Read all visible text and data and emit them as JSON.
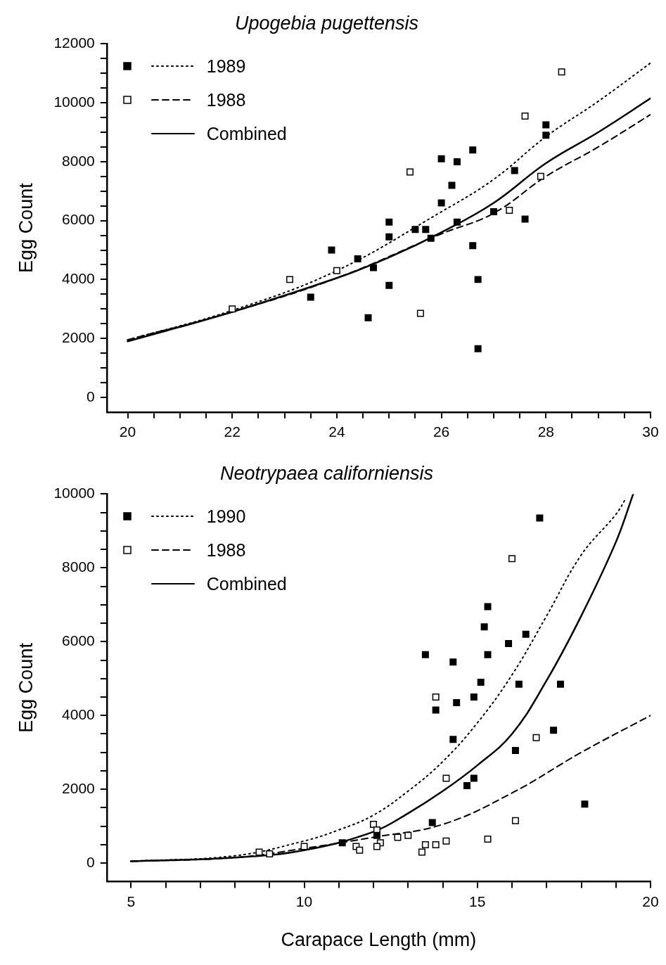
{
  "chart_data": [
    {
      "type": "scatter",
      "title": "Upogebia pugettensis",
      "ylabel": "Egg Count",
      "legend": "top left",
      "grid": false,
      "xlim": [
        19.6,
        30
      ],
      "ylim": [
        -500,
        12000
      ],
      "xticks": [
        20,
        {
          "value": 20.5,
          "label": null
        },
        {
          "value": 21,
          "label": null
        },
        {
          "value": 21.5,
          "label": null
        },
        22,
        {
          "value": 22.5,
          "label": null
        },
        {
          "value": 23,
          "label": null
        },
        {
          "value": 23.5,
          "label": null
        },
        24,
        {
          "value": 24.5,
          "label": null
        },
        {
          "value": 25,
          "label": null
        },
        {
          "value": 25.5,
          "label": null
        },
        26,
        {
          "value": 26.5,
          "label": null
        },
        {
          "value": 27,
          "label": null
        },
        {
          "value": 27.5,
          "label": null
        },
        28,
        {
          "value": 28.5,
          "label": null
        },
        {
          "value": 29,
          "label": null
        },
        {
          "value": 29.5,
          "label": null
        },
        30
      ],
      "yticks": [
        0,
        {
          "value": 500,
          "label": null
        },
        {
          "value": 1000,
          "label": null
        },
        {
          "value": 1500,
          "label": null
        },
        2000,
        {
          "value": 2500,
          "label": null
        },
        {
          "value": 3000,
          "label": null
        },
        {
          "value": 3500,
          "label": null
        },
        4000,
        {
          "value": 4500,
          "label": null
        },
        {
          "value": 5000,
          "label": null
        },
        {
          "value": 5500,
          "label": null
        },
        6000,
        {
          "value": 6500,
          "label": null
        },
        {
          "value": 7000,
          "label": null
        },
        {
          "value": 7500,
          "label": null
        },
        8000,
        {
          "value": 8500,
          "label": null
        },
        {
          "value": 9000,
          "label": null
        },
        {
          "value": 9500,
          "label": null
        },
        10000,
        {
          "value": 10500,
          "label": null
        },
        {
          "value": 11000,
          "label": null
        },
        {
          "value": 11500,
          "label": null
        },
        12000
      ],
      "series": [
        {
          "name": "1989",
          "type": "scatter",
          "marker": "square",
          "color": "#000000",
          "x": [
            23.5,
            23.9,
            24.4,
            24.7,
            24.6,
            25.0,
            25.0,
            25.0,
            25.5,
            25.7,
            25.8,
            26.0,
            26.0,
            26.2,
            26.3,
            26.3,
            26.6,
            26.6,
            26.7,
            26.7,
            27.0,
            27.4,
            27.6,
            28.0,
            28.0
          ],
          "values": [
            3400,
            5000,
            4700,
            4400,
            2700,
            5950,
            5450,
            3800,
            5700,
            5700,
            5400,
            8100,
            6600,
            7200,
            8000,
            5950,
            8400,
            5150,
            4000,
            1650,
            6300,
            7700,
            6050,
            9250,
            8900
          ]
        },
        {
          "name": "1988",
          "type": "scatter",
          "marker": "square",
          "color": "#ffffff",
          "x": [
            22.0,
            23.1,
            24.0,
            25.4,
            25.6,
            27.6,
            27.3,
            27.9,
            28.3
          ],
          "values": [
            3000,
            4000,
            4300,
            7650,
            2850,
            9550,
            6350,
            7500,
            11050
          ]
        },
        {
          "type": "line",
          "line_style": "dotted",
          "color": "#000000",
          "x": [
            20,
            22,
            24,
            26,
            27,
            28,
            29,
            30
          ],
          "values": [
            1950,
            2950,
            4300,
            6300,
            7400,
            8850,
            10050,
            11350
          ]
        },
        {
          "type": "line",
          "line_style": "dashed",
          "color": "#000000",
          "x": [
            20,
            22,
            24,
            26,
            27,
            28,
            29,
            30
          ],
          "values": [
            1950,
            2900,
            4050,
            5550,
            6250,
            7500,
            8500,
            9600
          ]
        },
        {
          "name": "Combined",
          "type": "line",
          "line_style": "solid",
          "color": "#000000",
          "x": [
            20,
            22,
            24,
            25,
            26,
            27,
            28,
            29,
            30
          ],
          "values": [
            1900,
            2900,
            4050,
            4750,
            5600,
            6600,
            7950,
            9000,
            10150
          ]
        }
      ]
    },
    {
      "type": "scatter",
      "title": "Neotrypaea californiensis",
      "xlabel": "Carapace Length (mm)",
      "ylabel": "Egg Count",
      "legend": "top left",
      "grid": false,
      "xlim": [
        4.3,
        20
      ],
      "ylim": [
        -500,
        10000
      ],
      "xticks": [
        5,
        {
          "value": 6,
          "label": null
        },
        {
          "value": 7,
          "label": null
        },
        {
          "value": 8,
          "label": null
        },
        {
          "value": 9,
          "label": null
        },
        10,
        {
          "value": 11,
          "label": null
        },
        {
          "value": 12,
          "label": null
        },
        {
          "value": 13,
          "label": null
        },
        {
          "value": 14,
          "label": null
        },
        15,
        {
          "value": 16,
          "label": null
        },
        {
          "value": 17,
          "label": null
        },
        {
          "value": 18,
          "label": null
        },
        {
          "value": 19,
          "label": null
        },
        20
      ],
      "yticks": [
        0,
        {
          "value": 500,
          "label": null
        },
        {
          "value": 1000,
          "label": null
        },
        {
          "value": 1500,
          "label": null
        },
        2000,
        {
          "value": 2500,
          "label": null
        },
        {
          "value": 3000,
          "label": null
        },
        {
          "value": 3500,
          "label": null
        },
        4000,
        {
          "value": 4500,
          "label": null
        },
        {
          "value": 5000,
          "label": null
        },
        {
          "value": 5500,
          "label": null
        },
        6000,
        {
          "value": 6500,
          "label": null
        },
        {
          "value": 7000,
          "label": null
        },
        {
          "value": 7500,
          "label": null
        },
        8000,
        {
          "value": 8500,
          "label": null
        },
        {
          "value": 9000,
          "label": null
        },
        {
          "value": 9500,
          "label": null
        },
        10000
      ],
      "series": [
        {
          "name": "1990",
          "type": "scatter",
          "marker": "square",
          "color": "#000000",
          "x": [
            16.8,
            15.3,
            15.2,
            16.4,
            15.9,
            13.5,
            15.3,
            14.3,
            15.1,
            16.2,
            17.4,
            14.9,
            14.4,
            13.8,
            14.3,
            17.2,
            16.1,
            14.9,
            14.7,
            18.1,
            13.7,
            12.1,
            11.1
          ],
          "values": [
            9350,
            6950,
            6400,
            6200,
            5950,
            5650,
            5650,
            5450,
            4900,
            4850,
            4850,
            4500,
            4350,
            4150,
            3350,
            3600,
            3050,
            2300,
            2100,
            1600,
            1100,
            750,
            550
          ]
        },
        {
          "name": "1988",
          "type": "scatter",
          "marker": "square",
          "color": "#ffffff",
          "x": [
            16.0,
            13.8,
            16.7,
            14.1,
            16.1,
            12.0,
            12.1,
            15.3,
            12.7,
            13.0,
            14.1,
            13.8,
            13.5,
            13.4,
            12.2,
            12.1,
            11.5,
            11.6,
            10.0,
            9.0,
            8.7
          ],
          "values": [
            8250,
            4500,
            3400,
            2300,
            1150,
            1050,
            900,
            650,
            700,
            750,
            600,
            500,
            500,
            300,
            550,
            450,
            450,
            350,
            450,
            250,
            300
          ]
        },
        {
          "type": "line",
          "line_style": "dotted",
          "color": "#000000",
          "x": [
            5,
            8,
            10,
            11,
            12,
            13,
            14,
            15,
            16,
            17,
            18,
            19,
            19.3
          ],
          "values": [
            50,
            200,
            600,
            900,
            1300,
            1950,
            2750,
            3800,
            5100,
            6700,
            8350,
            9450,
            9900
          ]
        },
        {
          "type": "line",
          "line_style": "dashed",
          "color": "#000000",
          "x": [
            5,
            8,
            10,
            12,
            14,
            16,
            18,
            20
          ],
          "values": [
            50,
            150,
            400,
            700,
            1050,
            1900,
            3000,
            4000
          ]
        },
        {
          "name": "Combined",
          "type": "line",
          "line_style": "solid",
          "color": "#000000",
          "x": [
            5,
            8,
            10,
            12,
            13,
            14,
            15,
            16,
            17,
            18,
            19,
            19.5
          ],
          "values": [
            50,
            150,
            350,
            850,
            1350,
            1950,
            2650,
            3500,
            4950,
            6700,
            8700,
            10000
          ]
        }
      ]
    }
  ]
}
